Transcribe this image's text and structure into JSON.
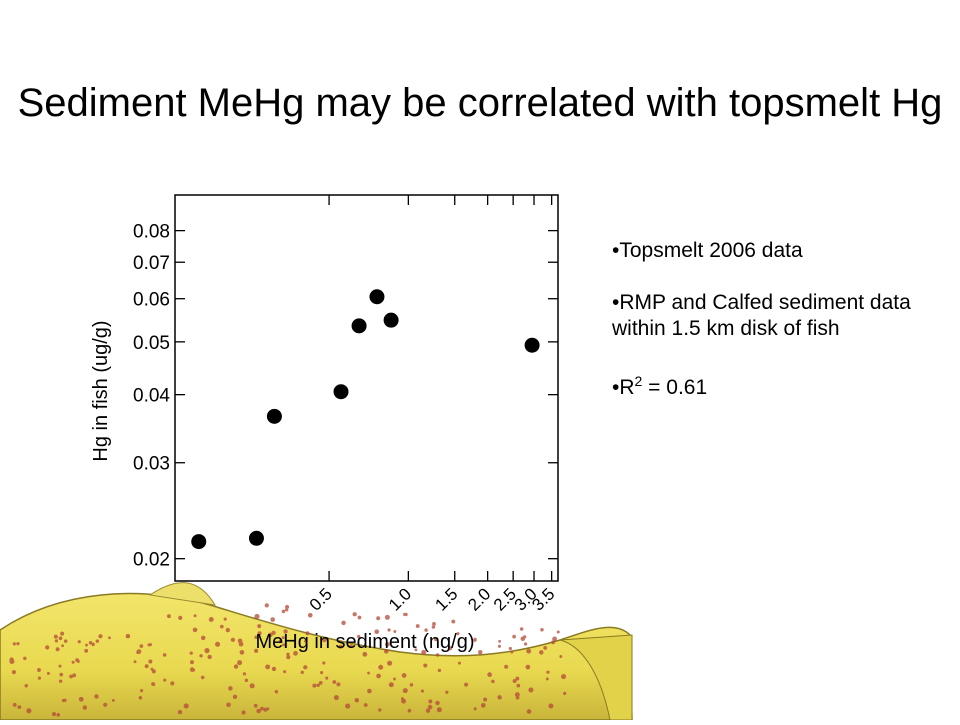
{
  "slide": {
    "title": "Sediment MeHg may be correlated with topsmelt Hg",
    "bullets": [
      {
        "text": "Topsmelt 2006 data"
      },
      {
        "text": "RMP and Calfed sediment data within 1.5 km disk of fish"
      },
      {
        "pre": "R",
        "sup": "2",
        "post": " = 0.61"
      }
    ]
  },
  "colors": {
    "points": "#000000",
    "fish": "#e8d94a"
  },
  "chart_data": {
    "type": "scatter",
    "xlabel": "MeHg in sediment (ng/g)",
    "ylabel": "Hg in fish (ug/g)",
    "xscale": "log",
    "yscale": "log",
    "xlim": [
      0.13,
      3.7
    ],
    "ylim": [
      0.0182,
      0.093
    ],
    "xticks": [
      {
        "value": 0.5,
        "label": "0.5"
      },
      {
        "value": 1.0,
        "label": "1.0"
      },
      {
        "value": 1.5,
        "label": "1.5"
      },
      {
        "value": 2.0,
        "label": "2.0"
      },
      {
        "value": 2.5,
        "label": "2.5"
      },
      {
        "value": 3.0,
        "label": "3.0"
      },
      {
        "value": 3.5,
        "label": "3.5"
      }
    ],
    "yticks": [
      {
        "value": 0.02,
        "label": "0.02"
      },
      {
        "value": 0.03,
        "label": "0.03"
      },
      {
        "value": 0.04,
        "label": "0.04"
      },
      {
        "value": 0.05,
        "label": "0.05"
      },
      {
        "value": 0.06,
        "label": "0.06"
      },
      {
        "value": 0.07,
        "label": "0.07"
      },
      {
        "value": 0.08,
        "label": "0.08"
      }
    ],
    "grid": false,
    "points": [
      {
        "x": 0.16,
        "y": 0.0215
      },
      {
        "x": 0.265,
        "y": 0.0218
      },
      {
        "x": 0.31,
        "y": 0.0365
      },
      {
        "x": 0.555,
        "y": 0.0405
      },
      {
        "x": 0.65,
        "y": 0.0535
      },
      {
        "x": 0.76,
        "y": 0.0605
      },
      {
        "x": 0.86,
        "y": 0.0548
      },
      {
        "x": 2.95,
        "y": 0.0493
      }
    ]
  }
}
